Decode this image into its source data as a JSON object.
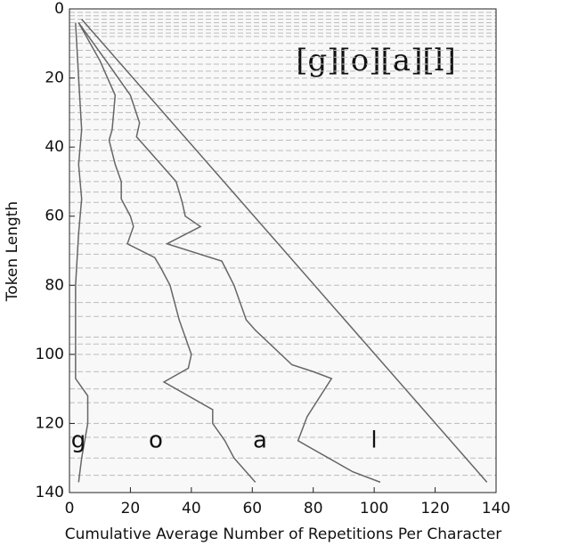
{
  "chart_data": {
    "type": "line",
    "title": "[g][o][a][l]",
    "x_label": "Cumulative Average Number of Repetitions Per Character",
    "y_label": "Token Length",
    "xlim": [
      0,
      140
    ],
    "ylim": [
      0,
      140
    ],
    "y_inverted": true,
    "xticks": [
      0,
      20,
      40,
      60,
      80,
      100,
      120,
      140
    ],
    "yticks": [
      0,
      20,
      40,
      60,
      80,
      100,
      120,
      140
    ],
    "hlines": [
      1,
      2,
      3,
      4,
      5,
      6,
      7,
      8,
      10,
      12,
      14,
      16,
      18,
      20,
      22,
      24,
      26,
      28,
      30,
      32,
      35,
      38,
      41,
      44,
      47,
      50,
      53,
      56,
      59,
      62,
      65,
      68,
      71,
      75,
      80,
      85,
      89,
      95,
      97,
      100,
      105,
      110,
      114,
      120,
      124,
      130,
      135
    ],
    "color": "#666666",
    "series": [
      {
        "name": "g",
        "x": [
          2,
          3,
          4,
          3,
          4,
          3,
          2,
          2,
          2,
          6,
          6,
          4,
          3
        ],
        "values": [
          4,
          20,
          35,
          45,
          55,
          65,
          80,
          100,
          107,
          112,
          120,
          130,
          137
        ]
      },
      {
        "name": "o",
        "x": [
          3,
          10,
          15,
          14,
          13,
          15,
          17,
          17,
          20,
          21,
          19,
          28,
          30,
          33,
          36,
          40,
          39,
          31,
          47,
          47,
          51,
          54,
          61
        ],
        "values": [
          4,
          15,
          25,
          35,
          38,
          45,
          50,
          55,
          60,
          63,
          68,
          72,
          75,
          80,
          90,
          100,
          104,
          108,
          116,
          120,
          125,
          130,
          137
        ]
      },
      {
        "name": "a",
        "x": [
          3,
          12,
          20,
          23,
          22,
          30,
          35,
          37,
          38,
          43,
          32,
          50,
          54,
          58,
          61,
          73,
          80,
          86,
          78,
          75,
          85,
          93,
          102
        ],
        "values": [
          4,
          15,
          25,
          33,
          37,
          45,
          50,
          56,
          60,
          63,
          68,
          73,
          80,
          90,
          93,
          103,
          105,
          107,
          118,
          125,
          130,
          134,
          137
        ]
      },
      {
        "name": "l",
        "x": [
          4,
          137
        ],
        "values": [
          3,
          137
        ]
      }
    ]
  }
}
